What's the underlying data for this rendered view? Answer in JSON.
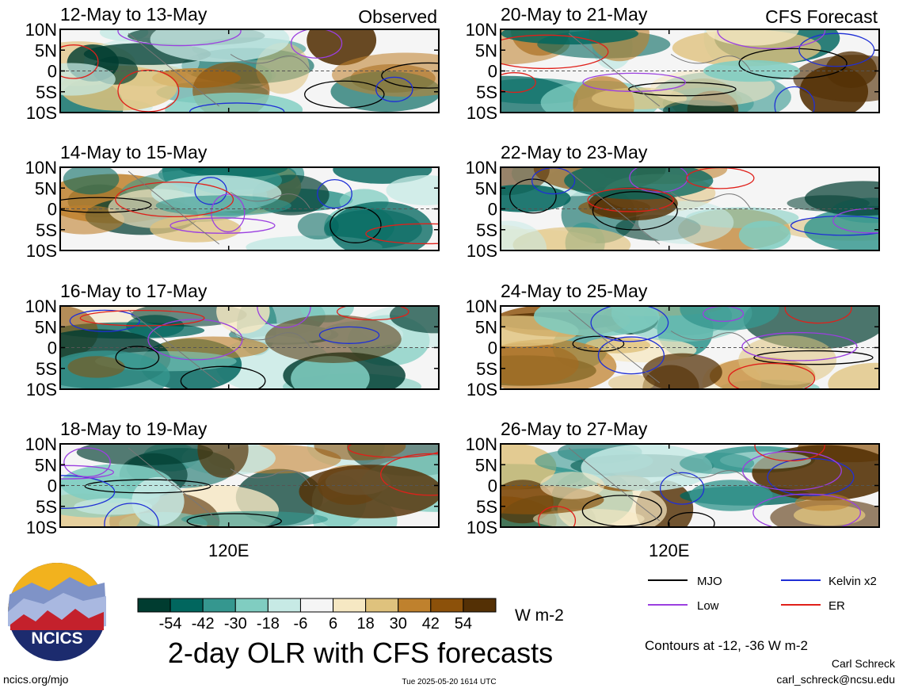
{
  "chart_data": {
    "type": "heatmap",
    "title": "2-day OLR with CFS forecasts",
    "colorbar": {
      "unit": "W m-2",
      "tick_labels": [
        "-54",
        "-42",
        "-30",
        "-18",
        "-6",
        "6",
        "18",
        "30",
        "42",
        "54"
      ],
      "colors": [
        "#003c30",
        "#01665e",
        "#35978f",
        "#80cdc1",
        "#c7eae5",
        "#f5f5f5",
        "#f6e8c3",
        "#dfc27d",
        "#bf812d",
        "#8c510a",
        "#543005"
      ]
    },
    "y_tick_labels": [
      "10N",
      "5N",
      "0",
      "5S",
      "10S"
    ],
    "x_tick_label": "120E",
    "column_headers": [
      "Observed",
      "CFS Forecast"
    ],
    "panels": [
      {
        "period": "12-May to 13-May",
        "source": "Observed"
      },
      {
        "period": "14-May to 15-May",
        "source": "Observed"
      },
      {
        "period": "16-May to 17-May",
        "source": "Observed"
      },
      {
        "period": "18-May to 19-May",
        "source": "Observed"
      },
      {
        "period": "20-May to 21-May",
        "source": "CFS Forecast"
      },
      {
        "period": "22-May to 23-May",
        "source": "CFS Forecast"
      },
      {
        "period": "24-May to 25-May",
        "source": "CFS Forecast"
      },
      {
        "period": "26-May to 27-May",
        "source": "CFS Forecast"
      }
    ],
    "legend": [
      {
        "name": "MJO",
        "color": "#000000"
      },
      {
        "name": "Kelvin x2",
        "color": "#1f2fd6"
      },
      {
        "name": "Low",
        "color": "#9b3fe0"
      },
      {
        "name": "ER",
        "color": "#e0201a"
      }
    ],
    "contour_note": "Contours at -12, -36 W m-2"
  },
  "footer": {
    "site": "ncics.org/mjo",
    "timestamp": "Tue 2025-05-20 1614 UTC",
    "author": "Carl Schreck",
    "email": "carl_schreck@ncsu.edu",
    "logo_text": "NCICS"
  }
}
